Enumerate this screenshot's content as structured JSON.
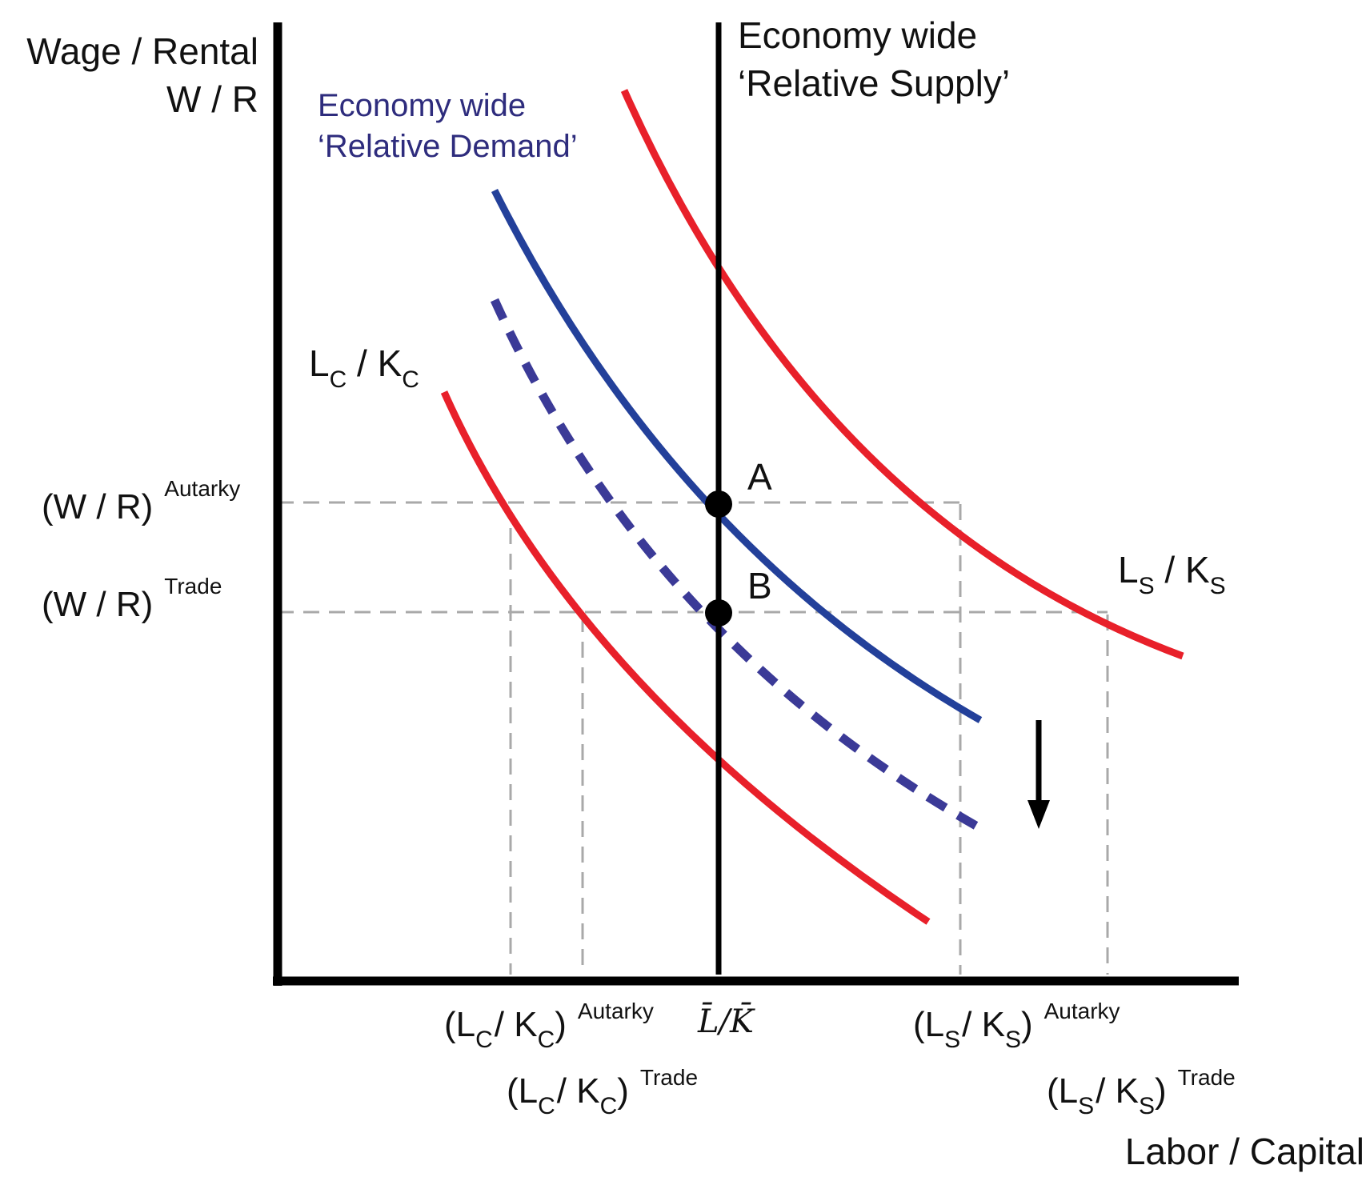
{
  "axes": {
    "y_title_line1": "Wage / Rental",
    "y_title_line2": "W / R",
    "x_title": "Labor / Capital"
  },
  "supply": {
    "line1": "Economy wide",
    "line2": "‘Relative Supply’"
  },
  "demand": {
    "line1": "Economy wide",
    "line2": "‘Relative Demand’"
  },
  "points": {
    "a": "A",
    "b": "B"
  },
  "curves": {
    "lc": {
      "base": "L",
      "sub": "C",
      "sep": " / ",
      "base2": "K",
      "sub2": "C"
    },
    "ls": {
      "base": "L",
      "sub": "S",
      "sep": " / ",
      "base2": "K",
      "sub2": "S"
    }
  },
  "y_ticks": {
    "autarky": {
      "text": "(W / R)",
      "sup": "Autarky"
    },
    "trade": {
      "text": "(W / R)",
      "sup": "Trade"
    }
  },
  "x_ticks": {
    "lc_autarky": {
      "open": "(L",
      "sub": "C",
      "mid": "/ K",
      "sub2": "C",
      "close": ")",
      "sup": "Autarky"
    },
    "lc_trade": {
      "open": "(L",
      "sub": "C",
      "mid": "/ K",
      "sub2": "C",
      "close": ")",
      "sup": "Trade"
    },
    "endowment": "L̄/K̄",
    "ls_autarky": {
      "open": "(L",
      "sub": "S",
      "mid": "/ K",
      "sub2": "S",
      "close": ")",
      "sup": "Autarky"
    },
    "ls_trade": {
      "open": "(L",
      "sub": "S",
      "mid": "/ K",
      "sub2": "S",
      "close": ")",
      "sup": "Trade"
    }
  },
  "colors": {
    "axis": "#000000",
    "red_curve": "#e8202a",
    "demand": "#23409a",
    "demand_shifted": "#3b3a97",
    "guide": "#a9a9a9",
    "demand_label": "#2e2c7d"
  }
}
